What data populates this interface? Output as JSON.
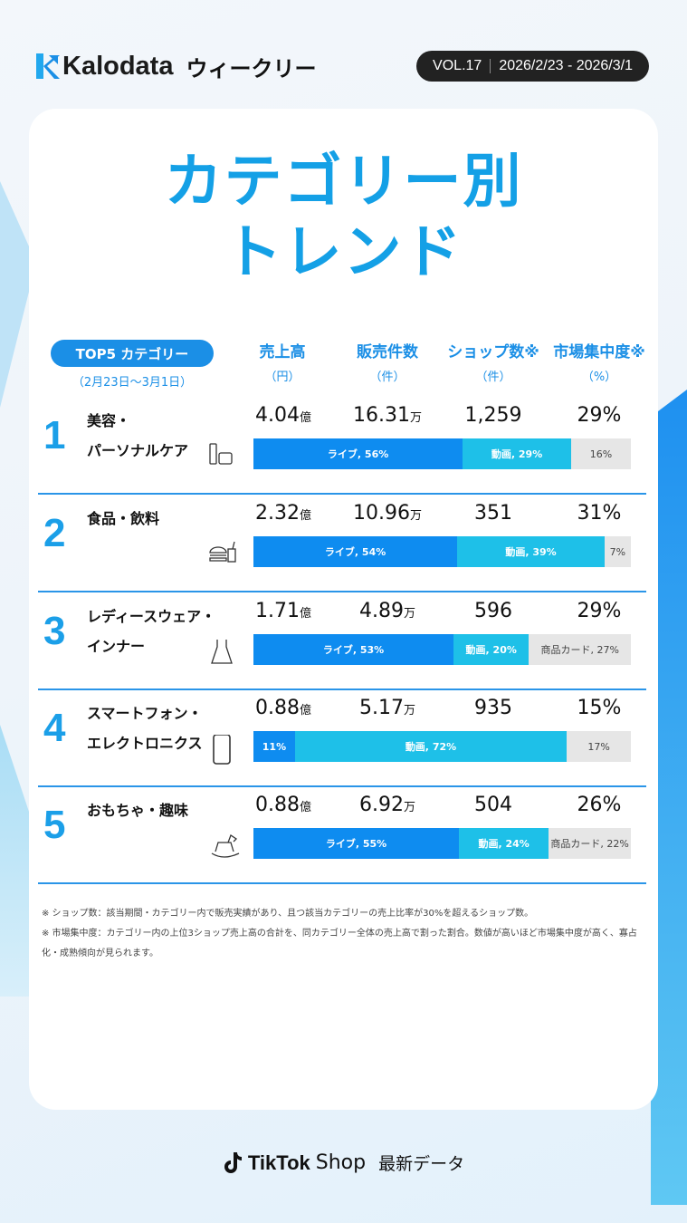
{
  "header": {
    "brand": "Kalodata",
    "weekly": "ウィークリー",
    "vol": "VOL.17",
    "date_range": "2026/2/23 - 2026/3/1"
  },
  "title": {
    "line1": "カテゴリー別",
    "line2": "トレンド"
  },
  "table": {
    "top_label": "TOP5 カテゴリー",
    "period": "（2月23日～3月1日）",
    "columns": [
      {
        "label": "売上高",
        "unit": "（円）"
      },
      {
        "label": "販売件数",
        "unit": "（件）"
      },
      {
        "label": "ショップ数※",
        "unit": "（件）"
      },
      {
        "label": "市場集中度※",
        "unit": "（%）"
      }
    ],
    "colors": {
      "live": "#0e8cf0",
      "video": "#1ec0e8",
      "product_card": "#e6e6e6"
    },
    "rows": [
      {
        "rank": "1",
        "cat1": "美容・",
        "cat2": "パーソナルケア",
        "icon": "cosmetics-icon",
        "sales": "4.04",
        "sales_unit": "億",
        "units": "16.31",
        "units_unit": "万",
        "shops": "1,259",
        "concentration": "29%",
        "bar": [
          {
            "type": "live",
            "pct": 56,
            "label": "ライブ, 56%"
          },
          {
            "type": "video",
            "pct": 29,
            "label": "動画, 29%"
          },
          {
            "type": "card",
            "pct": 16,
            "label": "16%"
          }
        ]
      },
      {
        "rank": "2",
        "cat1": "食品・飲料",
        "cat2": "",
        "icon": "burger-drink-icon",
        "sales": "2.32",
        "sales_unit": "億",
        "units": "10.96",
        "units_unit": "万",
        "shops": "351",
        "concentration": "31%",
        "bar": [
          {
            "type": "live",
            "pct": 54,
            "label": "ライブ, 54%"
          },
          {
            "type": "video",
            "pct": 39,
            "label": "動画, 39%"
          },
          {
            "type": "card",
            "pct": 7,
            "label": "7%"
          }
        ]
      },
      {
        "rank": "3",
        "cat1": "レディースウェア・",
        "cat2": "インナー",
        "icon": "dress-icon",
        "sales": "1.71",
        "sales_unit": "億",
        "units": "4.89",
        "units_unit": "万",
        "shops": "596",
        "concentration": "29%",
        "bar": [
          {
            "type": "live",
            "pct": 53,
            "label": "ライブ, 53%"
          },
          {
            "type": "video",
            "pct": 20,
            "label": "動画, 20%"
          },
          {
            "type": "card",
            "pct": 27,
            "label": "商品カード, 27%"
          }
        ]
      },
      {
        "rank": "4",
        "cat1": "スマートフォン・",
        "cat2": "エレクトロニクス",
        "icon": "smartphone-icon",
        "sales": "0.88",
        "sales_unit": "億",
        "units": "5.17",
        "units_unit": "万",
        "shops": "935",
        "concentration": "15%",
        "bar": [
          {
            "type": "live",
            "pct": 11,
            "label": "11%"
          },
          {
            "type": "video",
            "pct": 72,
            "label": "動画, 72%"
          },
          {
            "type": "card",
            "pct": 17,
            "label": "17%"
          }
        ]
      },
      {
        "rank": "5",
        "cat1": "おもちゃ・趣味",
        "cat2": "",
        "icon": "rocking-horse-icon",
        "sales": "0.88",
        "sales_unit": "億",
        "units": "6.92",
        "units_unit": "万",
        "shops": "504",
        "concentration": "26%",
        "bar": [
          {
            "type": "live",
            "pct": 55,
            "label": "ライブ, 55%"
          },
          {
            "type": "video",
            "pct": 24,
            "label": "動画, 24%"
          },
          {
            "type": "card",
            "pct": 22,
            "label": "商品カード, 22%"
          }
        ]
      }
    ]
  },
  "notes": [
    "※ ショップ数：該当期間・カテゴリー内で販売実績があり、且つ該当カテゴリーの売上比率が30%を超えるショップ数。",
    "※ 市場集中度：カテゴリー内の上位3ショップ売上高の合計を、同カテゴリー全体の売上高で割った割合。数値が高いほど市場集中度が高く、寡占化・成熟傾向が見られます。"
  ],
  "footer": {
    "brand": "TikTok",
    "shop": "Shop",
    "latest": "最新データ"
  }
}
